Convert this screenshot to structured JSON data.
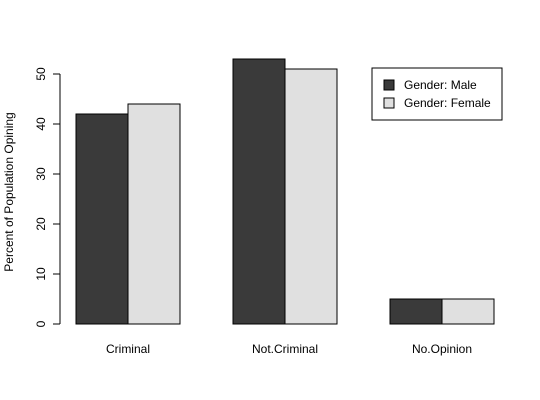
{
  "chart_data": {
    "type": "bar",
    "categories": [
      "Criminal",
      "Not.Criminal",
      "No.Opinion"
    ],
    "series": [
      {
        "name": "Gender: Male",
        "values": [
          42,
          53,
          5
        ],
        "color": "#3a3a3a"
      },
      {
        "name": "Gender: Female",
        "values": [
          44,
          51,
          5
        ],
        "color": "#e0e0e0"
      }
    ],
    "title": "",
    "xlabel": "",
    "ylabel": "Percent of Population Opining",
    "ylim": [
      0,
      50
    ],
    "yticks": [
      0,
      10,
      20,
      30,
      40,
      50
    ],
    "grid": false,
    "legend_position": "top-right",
    "barmode": "grouped"
  }
}
